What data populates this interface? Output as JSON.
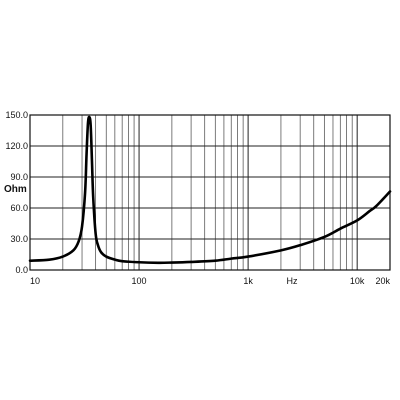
{
  "chart_data": {
    "type": "line",
    "title": "",
    "xlabel": "Hz",
    "ylabel": "Ohm",
    "x_scale": "log",
    "xlim": [
      10,
      20000
    ],
    "ylim": [
      0,
      150
    ],
    "grid": true,
    "x_tick_labels": [
      {
        "value": 10,
        "label": "10"
      },
      {
        "value": 100,
        "label": "100"
      },
      {
        "value": 1000,
        "label": "1k"
      },
      {
        "value": 10000,
        "label": "10k"
      },
      {
        "value": 20000,
        "label": "20k"
      }
    ],
    "y_tick_labels": [
      {
        "value": 0,
        "label": "0.0"
      },
      {
        "value": 30,
        "label": "30.0"
      },
      {
        "value": 60,
        "label": "60.0"
      },
      {
        "value": 90,
        "label": "90.0"
      },
      {
        "value": 120,
        "label": "120.0"
      },
      {
        "value": 150,
        "label": "150.0"
      }
    ],
    "series": [
      {
        "name": "",
        "x": [
          10,
          15,
          20,
          25,
          28,
          30,
          32,
          33,
          34,
          35,
          36,
          37,
          38,
          40,
          42,
          45,
          50,
          60,
          70,
          100,
          150,
          200,
          300,
          500,
          700,
          1000,
          2000,
          3000,
          5000,
          7000,
          10000,
          13000,
          15000,
          20000
        ],
        "y": [
          9,
          10,
          13,
          19,
          28,
          42,
          75,
          112,
          142,
          148,
          140,
          105,
          70,
          35,
          24,
          17,
          13,
          10,
          8.5,
          7.5,
          7,
          7.2,
          7.8,
          9,
          11,
          13,
          19,
          24,
          32,
          40,
          48,
          57,
          62,
          76
        ]
      }
    ]
  }
}
